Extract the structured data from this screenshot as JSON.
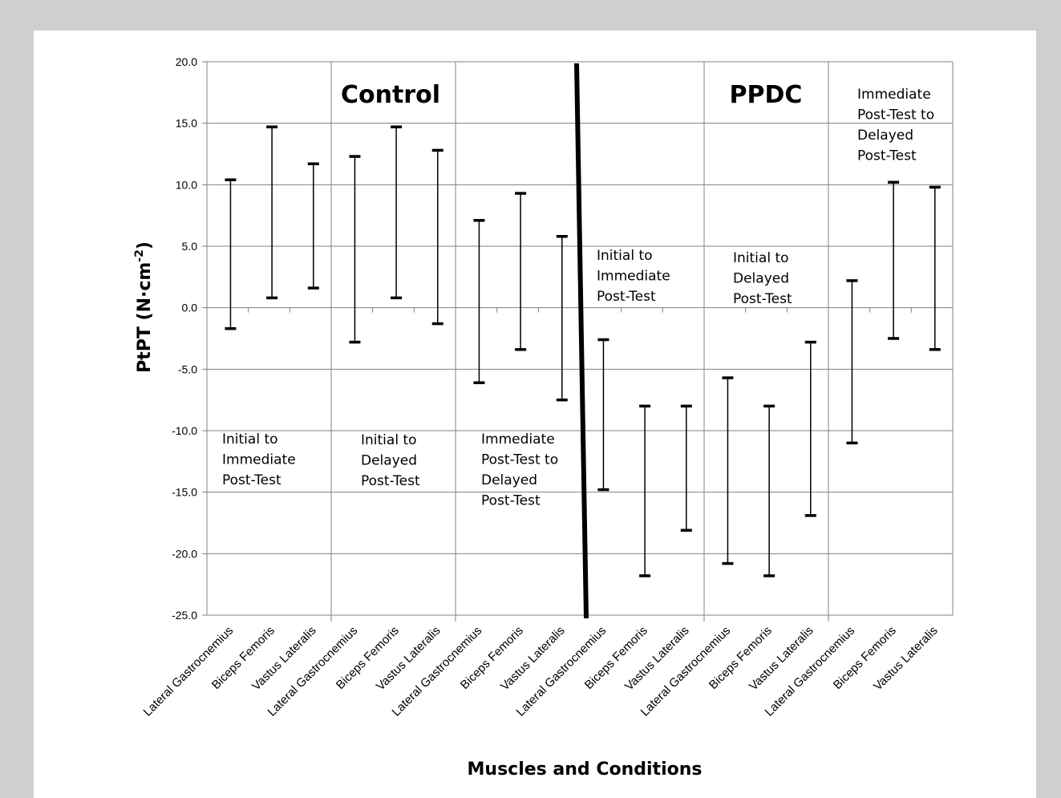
{
  "chart_data": {
    "type": "errorbar",
    "ylabel": "PtPT (N·cm",
    "ylabel_sup": "-2",
    "ylabel_end": ")",
    "xlabel": "Muscles and Conditions",
    "ylim": [
      -25,
      20
    ],
    "yticks": [
      "20.0",
      "15.0",
      "10.0",
      "5.0",
      "0.0",
      "-5.0",
      "-10.0",
      "-15.0",
      "-20.0",
      "-25.0"
    ],
    "grid": "horizontal and vertical",
    "group_titles": [
      "Control",
      "PPDC"
    ],
    "annotations": [
      [
        "Initial to",
        "Immediate",
        "Post-Test"
      ],
      [
        "Initial to",
        "Delayed",
        "Post-Test"
      ],
      [
        "Immediate",
        "Post-Test to",
        "Delayed",
        "Post-Test"
      ],
      [
        "Initial to",
        "Immediate",
        "Post-Test"
      ],
      [
        "Initial to",
        "Delayed",
        "Post-Test"
      ],
      [
        "Immediate",
        "Post-Test to",
        "Delayed",
        "Post-Test"
      ]
    ],
    "categories": [
      "Lateral Gastrocnemius",
      "Biceps Femoris",
      "Vastus Lateralis",
      "Lateral Gastrocnemius",
      "Biceps Femoris",
      "Vastus Lateralis",
      "Lateral Gastrocnemius",
      "Biceps Femoris",
      "Vastus Lateralis",
      "Lateral Gastrocnemius",
      "Biceps Femoris",
      "Vastus Lateralis",
      "Lateral Gastrocnemius",
      "Biceps Femoris",
      "Vastus Lateralis",
      "Lateral Gastrocnemius",
      "Biceps Femoris",
      "Vastus Lateralis"
    ],
    "ranges": [
      [
        -1.7,
        10.4
      ],
      [
        0.8,
        14.7
      ],
      [
        1.6,
        11.7
      ],
      [
        -2.8,
        12.3
      ],
      [
        0.8,
        14.7
      ],
      [
        -1.3,
        12.8
      ],
      [
        -6.1,
        7.1
      ],
      [
        -3.4,
        9.3
      ],
      [
        -7.5,
        5.8
      ],
      [
        -14.8,
        -2.6
      ],
      [
        -21.8,
        -8.0
      ],
      [
        -18.1,
        -8.0
      ],
      [
        -20.8,
        -5.7
      ],
      [
        -21.8,
        -8.0
      ],
      [
        -16.9,
        -2.8
      ],
      [
        -11.0,
        2.2
      ],
      [
        -2.5,
        10.2
      ],
      [
        -3.4,
        9.8
      ]
    ]
  }
}
